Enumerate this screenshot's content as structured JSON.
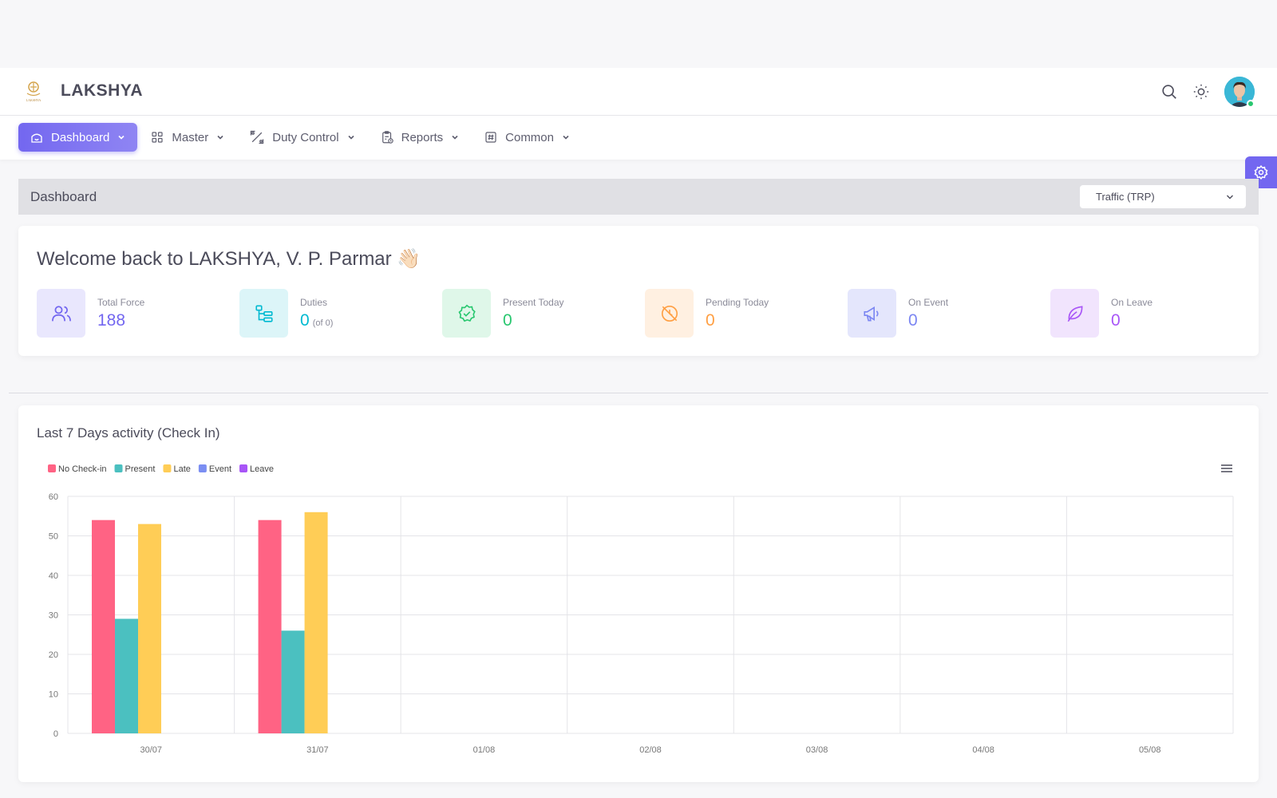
{
  "brand": {
    "name": "LAKSHYA",
    "logo_text": "LAKSHYA"
  },
  "header_icons": [
    "search-icon",
    "sun-icon"
  ],
  "nav": {
    "items": [
      {
        "label": "Dashboard",
        "icon": "home-icon",
        "active": true
      },
      {
        "label": "Master",
        "icon": "grid-icon"
      },
      {
        "label": "Duty Control",
        "icon": "percent-icon"
      },
      {
        "label": "Reports",
        "icon": "clipboard-icon"
      },
      {
        "label": "Common",
        "icon": "hash-icon"
      }
    ]
  },
  "page": {
    "title": "Dashboard",
    "unit_select": "Traffic (TRP)"
  },
  "welcome": {
    "text": "Welcome back to LAKSHYA, V. P. Parmar 👋🏻"
  },
  "stats": [
    {
      "label": "Total Force",
      "value": "188",
      "sub": "",
      "color": "#7367f0",
      "bg": "#e9e7fd",
      "icon": "users-icon"
    },
    {
      "label": "Duties",
      "value": "0",
      "sub": "(of 0)",
      "color": "#00bad1",
      "bg": "#dcf5f8",
      "icon": "sitemap-icon"
    },
    {
      "label": "Present Today",
      "value": "0",
      "sub": "",
      "color": "#28c76f",
      "bg": "#dff7e9",
      "icon": "badge-check-icon"
    },
    {
      "label": "Pending Today",
      "value": "0",
      "sub": "",
      "color": "#ff9f43",
      "bg": "#fff0e1",
      "icon": "clock-off-icon"
    },
    {
      "label": "On Event",
      "value": "0",
      "sub": "",
      "color": "#7b86f2",
      "bg": "#e4e6fc",
      "icon": "megaphone-icon"
    },
    {
      "label": "On Leave",
      "value": "0",
      "sub": "",
      "color": "#a855f7",
      "bg": "#f1e4fd",
      "icon": "leaf-icon"
    }
  ],
  "chart": {
    "title": "Last 7 Days activity (Check In)"
  },
  "chart_data": {
    "type": "bar",
    "categories": [
      "30/07",
      "31/07",
      "01/08",
      "02/08",
      "03/08",
      "04/08",
      "05/08"
    ],
    "series": [
      {
        "name": "No Check-in",
        "color": "#ff6384",
        "values": [
          54,
          54,
          0,
          0,
          0,
          0,
          0
        ]
      },
      {
        "name": "Present",
        "color": "#4bc0c0",
        "values": [
          29,
          26,
          0,
          0,
          0,
          0,
          0
        ]
      },
      {
        "name": "Late",
        "color": "#ffcd56",
        "values": [
          53,
          56,
          0,
          0,
          0,
          0,
          0
        ]
      },
      {
        "name": "Event",
        "color": "#7b8ef2",
        "values": [
          0,
          0,
          0,
          0,
          0,
          0,
          0
        ]
      },
      {
        "name": "Leave",
        "color": "#a855f7",
        "values": [
          0,
          0,
          0,
          0,
          0,
          0,
          0
        ]
      }
    ],
    "yticks": [
      0,
      10,
      20,
      30,
      40,
      50,
      60
    ],
    "ylim": [
      0,
      60
    ],
    "grid": true,
    "legend_position": "top-left"
  }
}
